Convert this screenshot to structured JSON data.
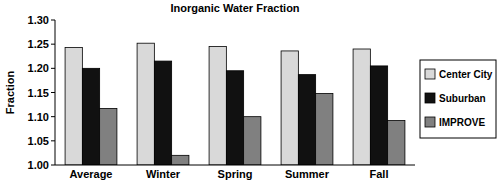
{
  "chart_data": {
    "type": "bar",
    "title": "Inorganic Water Fraction",
    "y_label": "Fraction",
    "categories": [
      "Average",
      "Winter",
      "Spring",
      "Summer",
      "Fall"
    ],
    "series": [
      {
        "name": "Center City",
        "color": "#d9d9d9",
        "values": [
          1.243,
          1.252,
          1.245,
          1.236,
          1.24
        ]
      },
      {
        "name": "Suburban",
        "color": "#111111",
        "values": [
          1.2,
          1.215,
          1.195,
          1.187,
          1.205
        ]
      },
      {
        "name": "IMPROVE",
        "color": "#808080",
        "values": [
          1.117,
          1.02,
          1.1,
          1.148,
          1.092
        ]
      }
    ],
    "ylim": [
      1.0,
      1.3
    ],
    "yticks": [
      {
        "value": 1.0,
        "label": "1.00"
      },
      1.05,
      {
        "value": 1.1,
        "label": "1.10"
      },
      1.15,
      {
        "value": 1.2,
        "label": "1.20"
      },
      1.25,
      {
        "value": 1.3,
        "label": "1.30"
      }
    ],
    "grid": false,
    "legend": "right"
  }
}
